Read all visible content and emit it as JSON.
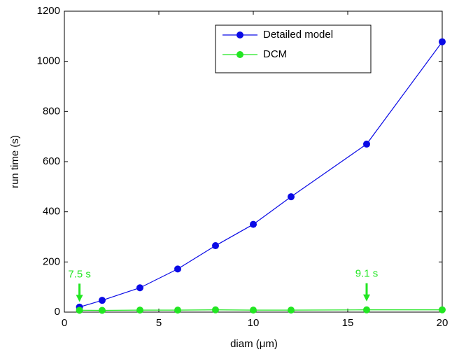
{
  "chart_data": {
    "type": "line",
    "xlabel": "diam (μm)",
    "ylabel": "run time (s)",
    "x": [
      0.8,
      2,
      4,
      6,
      8,
      10,
      12,
      16,
      20
    ],
    "series": [
      {
        "name": "Detailed model",
        "color": "#0a0ae6",
        "values": [
          20,
          47,
          97,
          172,
          265,
          350,
          460,
          670,
          1078
        ]
      },
      {
        "name": "DCM",
        "color": "#22e622",
        "values": [
          7.5,
          7,
          8,
          8,
          9,
          8,
          8,
          9.1,
          9
        ]
      }
    ],
    "xlim": [
      0,
      20
    ],
    "xticks": [
      0,
      5,
      10,
      15,
      20
    ],
    "ylim": [
      0,
      1200
    ],
    "yticks": [
      0,
      200,
      400,
      600,
      800,
      1000,
      1200
    ],
    "grid": false,
    "legend": "upper center",
    "annotations": [
      {
        "text": "7.5 s",
        "x": 0.8,
        "y": 7.5,
        "color": "#22e622"
      },
      {
        "text": "9.1 s",
        "x": 16,
        "y": 9.1,
        "color": "#22e622"
      }
    ]
  }
}
